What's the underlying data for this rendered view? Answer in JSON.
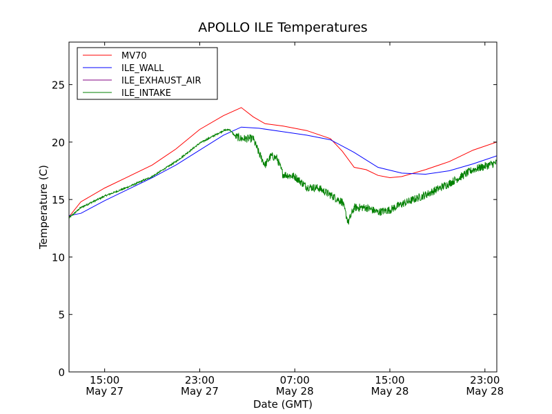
{
  "chart_data": {
    "type": "line",
    "title": "APOLLO ILE Temperatures",
    "xlabel": "Date (GMT)",
    "ylabel": "Temperature (C)",
    "ylim": [
      0,
      28.7
    ],
    "xlim": [
      "2011-05-27T12:00",
      "2011-05-29T00:00"
    ],
    "grid": false,
    "legend_placement": "top-left",
    "x_ticks": [
      {
        "x": "2011-05-27T15:00",
        "time": "15:00",
        "date": "May 27"
      },
      {
        "x": "2011-05-27T23:00",
        "time": "23:00",
        "date": "May 27"
      },
      {
        "x": "2011-05-28T07:00",
        "time": "07:00",
        "date": "May 28"
      },
      {
        "x": "2011-05-28T15:00",
        "time": "15:00",
        "date": "May 28"
      },
      {
        "x": "2011-05-28T23:00",
        "time": "23:00",
        "date": "May 28"
      }
    ],
    "y_ticks": [
      0,
      5,
      10,
      15,
      20,
      25
    ],
    "series": [
      {
        "name": "MV70",
        "color": "#ff0000",
        "points": [
          [
            "2011-05-27T12:00",
            13.5
          ],
          [
            "2011-05-27T13:00",
            14.8
          ],
          [
            "2011-05-27T15:00",
            16.0
          ],
          [
            "2011-05-27T17:00",
            17.0
          ],
          [
            "2011-05-27T19:00",
            18.0
          ],
          [
            "2011-05-27T21:00",
            19.4
          ],
          [
            "2011-05-27T23:00",
            21.1
          ],
          [
            "2011-05-28T01:00",
            22.3
          ],
          [
            "2011-05-28T02:30",
            23.0
          ],
          [
            "2011-05-28T03:30",
            22.2
          ],
          [
            "2011-05-28T04:30",
            21.6
          ],
          [
            "2011-05-28T06:00",
            21.4
          ],
          [
            "2011-05-28T08:00",
            21.0
          ],
          [
            "2011-05-28T10:00",
            20.3
          ],
          [
            "2011-05-28T11:00",
            19.2
          ],
          [
            "2011-05-28T12:00",
            17.8
          ],
          [
            "2011-05-28T13:00",
            17.6
          ],
          [
            "2011-05-28T14:00",
            17.1
          ],
          [
            "2011-05-28T15:00",
            16.9
          ],
          [
            "2011-05-28T16:00",
            17.0
          ],
          [
            "2011-05-28T18:00",
            17.6
          ],
          [
            "2011-05-28T20:00",
            18.3
          ],
          [
            "2011-05-28T22:00",
            19.3
          ],
          [
            "2011-05-29T00:00",
            20.0
          ]
        ]
      },
      {
        "name": "ILE_WALL",
        "color": "#0000ff",
        "points": [
          [
            "2011-05-27T12:00",
            13.6
          ],
          [
            "2011-05-27T13:00",
            13.8
          ],
          [
            "2011-05-27T15:00",
            14.9
          ],
          [
            "2011-05-27T17:00",
            15.9
          ],
          [
            "2011-05-27T19:00",
            16.9
          ],
          [
            "2011-05-27T21:00",
            18.0
          ],
          [
            "2011-05-27T23:00",
            19.3
          ],
          [
            "2011-05-28T01:00",
            20.6
          ],
          [
            "2011-05-28T02:30",
            21.3
          ],
          [
            "2011-05-28T04:00",
            21.2
          ],
          [
            "2011-05-28T06:00",
            20.9
          ],
          [
            "2011-05-28T08:00",
            20.6
          ],
          [
            "2011-05-28T10:00",
            20.2
          ],
          [
            "2011-05-28T12:00",
            19.1
          ],
          [
            "2011-05-28T14:00",
            17.8
          ],
          [
            "2011-05-28T16:00",
            17.3
          ],
          [
            "2011-05-28T18:00",
            17.2
          ],
          [
            "2011-05-28T20:00",
            17.5
          ],
          [
            "2011-05-28T22:00",
            18.1
          ],
          [
            "2011-05-29T00:00",
            18.8
          ]
        ]
      },
      {
        "name": "ILE_EXHAUST_AIR",
        "color": "#800080",
        "points": []
      },
      {
        "name": "ILE_INTAKE",
        "color": "#008000",
        "noise": 0.35,
        "points": [
          [
            "2011-05-27T12:00",
            13.4
          ],
          [
            "2011-05-27T13:00",
            14.3
          ],
          [
            "2011-05-27T15:00",
            15.3
          ],
          [
            "2011-05-27T17:00",
            16.1
          ],
          [
            "2011-05-27T19:00",
            17.0
          ],
          [
            "2011-05-27T21:00",
            18.3
          ],
          [
            "2011-05-27T23:00",
            19.9
          ],
          [
            "2011-05-28T01:00",
            21.0
          ],
          [
            "2011-05-28T01:30",
            21.1
          ],
          [
            "2011-05-28T02:00",
            20.5
          ],
          [
            "2011-05-28T02:30",
            20.3
          ],
          [
            "2011-05-28T03:30",
            20.3
          ],
          [
            "2011-05-28T04:00",
            19.0
          ],
          [
            "2011-05-28T04:30",
            18.0
          ],
          [
            "2011-05-28T05:00",
            18.8
          ],
          [
            "2011-05-28T05:30",
            18.6
          ],
          [
            "2011-05-28T06:00",
            17.2
          ],
          [
            "2011-05-28T07:00",
            17.0
          ],
          [
            "2011-05-28T08:00",
            16.1
          ],
          [
            "2011-05-28T09:00",
            16.0
          ],
          [
            "2011-05-28T10:00",
            15.4
          ],
          [
            "2011-05-28T11:00",
            14.8
          ],
          [
            "2011-05-28T11:30",
            13.0
          ],
          [
            "2011-05-28T12:00",
            14.3
          ],
          [
            "2011-05-28T13:00",
            14.3
          ],
          [
            "2011-05-28T14:00",
            13.9
          ],
          [
            "2011-05-28T15:00",
            14.1
          ],
          [
            "2011-05-28T16:00",
            14.6
          ],
          [
            "2011-05-28T17:00",
            15.0
          ],
          [
            "2011-05-28T18:00",
            15.4
          ],
          [
            "2011-05-28T20:00",
            16.4
          ],
          [
            "2011-05-28T22:00",
            17.6
          ],
          [
            "2011-05-29T00:00",
            18.2
          ]
        ]
      }
    ]
  }
}
